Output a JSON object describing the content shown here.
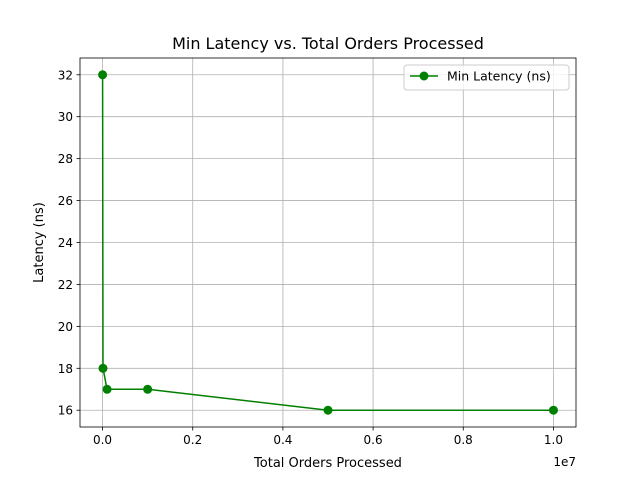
{
  "chart_data": {
    "type": "line",
    "title": "Min Latency vs. Total Orders Processed",
    "xlabel": "Total Orders Processed",
    "ylabel": "Latency (ns)",
    "x_offset_label": "1e7",
    "xlim": [
      -500000,
      10500000
    ],
    "ylim": [
      15.2,
      32.8
    ],
    "x_ticks": [
      0,
      2000000,
      4000000,
      6000000,
      8000000,
      10000000
    ],
    "x_tick_labels": [
      "0.0",
      "0.2",
      "0.4",
      "0.6",
      "0.8",
      "1.0"
    ],
    "y_ticks": [
      16,
      18,
      20,
      22,
      24,
      26,
      28,
      30,
      32
    ],
    "y_tick_labels": [
      "16",
      "18",
      "20",
      "22",
      "24",
      "26",
      "28",
      "30",
      "32"
    ],
    "grid": true,
    "legend_position": "upper right",
    "series": [
      {
        "name": "Min Latency (ns)",
        "color": "#008000",
        "marker": "circle",
        "x": [
          1000,
          10000,
          100000,
          1000000,
          5000000,
          10000000
        ],
        "y": [
          32,
          18,
          17,
          17,
          16,
          16
        ]
      }
    ]
  }
}
